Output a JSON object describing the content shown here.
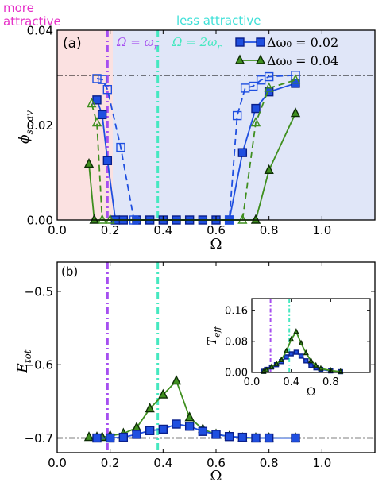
{
  "annotations": {
    "more_attractive": [
      "more",
      "attractive"
    ],
    "less_attractive": "less attractive"
  },
  "colors": {
    "blue": "#1f4fe0",
    "green": "#3f8f1f",
    "purple": "#a64ff0",
    "aqua": "#45e8c0",
    "pink_region": "#fbe1e1",
    "blue_region": "#e0e6f8",
    "magenta_text": "#e632c8",
    "cyan_text": "#3fe0d8"
  },
  "chart_data": [
    {
      "type": "line",
      "panel_label": "(a)",
      "xlabel": "Ω",
      "ylabel": "ϕ_sc,av",
      "xlim": [
        0.0,
        1.2
      ],
      "ylim": [
        0.0,
        0.04
      ],
      "xticks": [
        "0.0",
        "0.2",
        "0.4",
        "0.6",
        "0.8",
        "1.0"
      ],
      "yticks": [
        "0.00",
        "0.02",
        "0.04"
      ],
      "vlines": [
        {
          "x": 0.19,
          "label": "Ω = ω_r",
          "color": "purple"
        },
        {
          "x": 0.38,
          "label": "Ω = 2ω_r",
          "color": "aqua"
        }
      ],
      "hline": 0.0305,
      "regions": [
        {
          "from": 0.0,
          "to": 0.21,
          "color": "pink_region"
        },
        {
          "from": 0.21,
          "to": 1.2,
          "color": "blue_region"
        }
      ],
      "legend": [
        {
          "label": "Δω₀ = 0.02",
          "color": "blue",
          "marker": "square"
        },
        {
          "label": "Δω₀ = 0.04",
          "color": "green",
          "marker": "triangle"
        }
      ],
      "series": [
        {
          "color": "blue",
          "marker": "square",
          "filled": true,
          "dash": false,
          "x": [
            0.15,
            0.17,
            0.19,
            0.22,
            0.25,
            0.3,
            0.35,
            0.4,
            0.45,
            0.5,
            0.55,
            0.6,
            0.65,
            0.7,
            0.75,
            0.8,
            0.9
          ],
          "y": [
            0.0253,
            0.0222,
            0.0125,
            0.0,
            0.0,
            0.0,
            0.0,
            0.0,
            0.0,
            0.0,
            0.0,
            0.0,
            0.0,
            0.0142,
            0.0235,
            0.027,
            0.0288
          ]
        },
        {
          "color": "blue",
          "marker": "square",
          "filled": false,
          "dash": true,
          "x": [
            0.15,
            0.17,
            0.19,
            0.24,
            0.29,
            0.65,
            0.68,
            0.71,
            0.74,
            0.77,
            0.8,
            0.9
          ],
          "y": [
            0.0298,
            0.0296,
            0.0275,
            0.0153,
            0.0,
            0.0,
            0.022,
            0.0278,
            0.0282,
            0.0295,
            0.0302,
            0.0305
          ]
        },
        {
          "color": "green",
          "marker": "triangle",
          "filled": true,
          "dash": false,
          "x": [
            0.12,
            0.14,
            0.75,
            0.8,
            0.9
          ],
          "y": [
            0.0118,
            0.0,
            0.0,
            0.0105,
            0.0225
          ]
        },
        {
          "color": "green",
          "marker": "triangle",
          "filled": false,
          "dash": true,
          "x": [
            0.13,
            0.15,
            0.17,
            0.2,
            0.7,
            0.75,
            0.8,
            0.9
          ],
          "y": [
            0.0245,
            0.0205,
            0.0,
            0.0,
            0.0,
            0.0205,
            0.0278,
            0.0295
          ]
        }
      ]
    },
    {
      "type": "line",
      "panel_label": "(b)",
      "xlabel": "Ω",
      "ylabel": "E_tot",
      "xlim": [
        0.0,
        1.2
      ],
      "ylim": [
        -0.72,
        -0.46
      ],
      "xticks": [
        "0.0",
        "0.2",
        "0.4",
        "0.6",
        "0.8",
        "1.0"
      ],
      "yticks": [
        "−0.5",
        "−0.6",
        "−0.7"
      ],
      "vlines": [
        {
          "x": 0.19,
          "color": "purple"
        },
        {
          "x": 0.38,
          "color": "aqua"
        }
      ],
      "hline": -0.7,
      "series": [
        {
          "name": "Δω₀ = 0.02",
          "color": "blue",
          "marker": "square",
          "filled": true,
          "x": [
            0.15,
            0.2,
            0.25,
            0.3,
            0.35,
            0.4,
            0.45,
            0.5,
            0.55,
            0.6,
            0.65,
            0.7,
            0.75,
            0.8,
            0.9
          ],
          "y": [
            -0.7,
            -0.7,
            -0.699,
            -0.695,
            -0.69,
            -0.688,
            -0.681,
            -0.684,
            -0.691,
            -0.695,
            -0.698,
            -0.699,
            -0.7,
            -0.7,
            -0.7
          ]
        },
        {
          "name": "Δω₀ = 0.04",
          "color": "green",
          "marker": "triangle",
          "filled": true,
          "x": [
            0.12,
            0.15,
            0.17,
            0.2,
            0.25,
            0.3,
            0.35,
            0.4,
            0.45,
            0.5,
            0.55,
            0.6,
            0.65,
            0.7,
            0.75,
            0.8,
            0.9
          ],
          "y": [
            -0.699,
            -0.699,
            -0.699,
            -0.697,
            -0.694,
            -0.686,
            -0.66,
            -0.641,
            -0.622,
            -0.672,
            -0.688,
            -0.695,
            -0.698,
            -0.7,
            -0.7,
            -0.7,
            -0.7
          ]
        }
      ]
    },
    {
      "type": "line",
      "panel_label": "inset",
      "xlabel": "Ω",
      "ylabel": "T_eff",
      "xlim": [
        0.0,
        1.2
      ],
      "ylim": [
        0.0,
        0.19
      ],
      "xticks": [
        "0.0",
        "0.4",
        "0.8"
      ],
      "yticks": [
        "0.00",
        "0.08",
        "0.16"
      ],
      "vlines": [
        {
          "x": 0.19,
          "color": "purple"
        },
        {
          "x": 0.38,
          "color": "aqua"
        }
      ],
      "series": [
        {
          "color": "blue",
          "marker": "square",
          "filled": true,
          "x": [
            0.12,
            0.15,
            0.2,
            0.25,
            0.3,
            0.35,
            0.4,
            0.45,
            0.5,
            0.55,
            0.6,
            0.65,
            0.7,
            0.8,
            0.9
          ],
          "y": [
            0.003,
            0.008,
            0.014,
            0.02,
            0.028,
            0.04,
            0.048,
            0.052,
            0.042,
            0.03,
            0.018,
            0.012,
            0.008,
            0.004,
            0.002
          ]
        },
        {
          "color": "green",
          "marker": "triangle",
          "filled": true,
          "x": [
            0.12,
            0.15,
            0.2,
            0.25,
            0.3,
            0.35,
            0.4,
            0.45,
            0.5,
            0.55,
            0.6,
            0.65,
            0.7,
            0.8,
            0.9
          ],
          "y": [
            0.002,
            0.006,
            0.014,
            0.022,
            0.032,
            0.055,
            0.085,
            0.105,
            0.075,
            0.05,
            0.03,
            0.018,
            0.01,
            0.005,
            0.002
          ]
        }
      ]
    }
  ]
}
